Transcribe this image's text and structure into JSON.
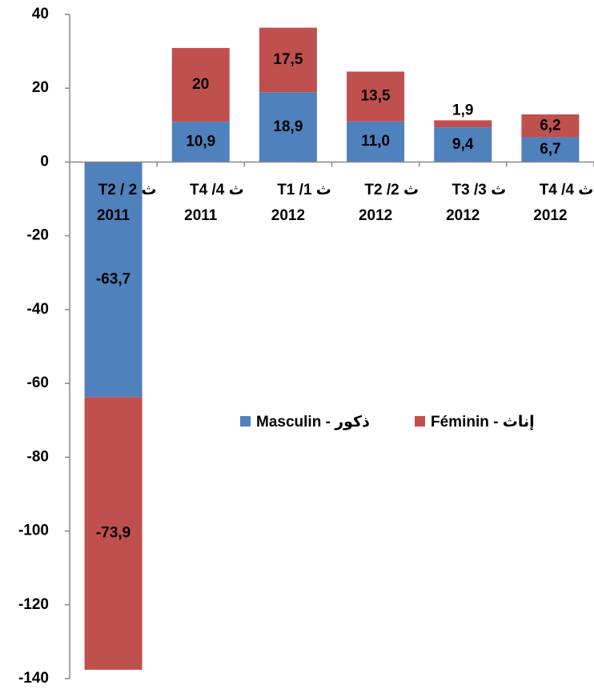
{
  "chart_data": {
    "type": "stacked_bar",
    "categories": [
      [
        "ث 2 / T2",
        "2011"
      ],
      [
        "ث 4/ T4",
        "2011"
      ],
      [
        "ث 1/ T1",
        "2012"
      ],
      [
        "ث 2/ T2",
        "2012"
      ],
      [
        "ث 3/ T3",
        "2012"
      ],
      [
        "ث 4/ T4",
        "2012"
      ]
    ],
    "series": [
      {
        "name": "Masculin - ذكور",
        "color": "#4f81bd",
        "values": [
          -63.7,
          10.9,
          18.9,
          11.0,
          9.4,
          6.7
        ],
        "value_labels": [
          "-63,7",
          "10,9",
          "18,9",
          "11,0",
          "9,4",
          "6,7"
        ]
      },
      {
        "name": "Féminin - إناث",
        "color": "#c0504d",
        "values": [
          -73.9,
          20,
          17.5,
          13.5,
          1.9,
          6.2
        ],
        "value_labels": [
          "-73,9",
          "20",
          "17,5",
          "13,5",
          "1,9",
          "6,2"
        ]
      }
    ],
    "ylim": [
      -140,
      40
    ],
    "yticks": [
      40,
      20,
      0,
      -20,
      -40,
      -60,
      -80,
      -100,
      -120,
      -140
    ]
  }
}
